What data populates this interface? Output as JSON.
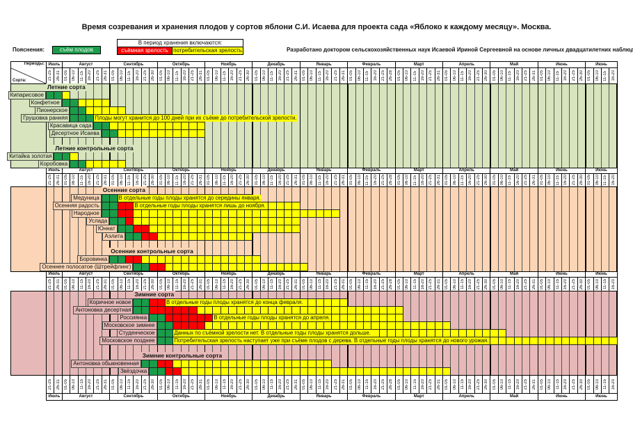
{
  "title": "Время созревания и хранения плодов у сортов яблони С.И. Исаева для проекта сада «Яблоко к каждому месяцу». Москва.",
  "legend": {
    "label": "Пояснения:",
    "harvest": "съём плодов",
    "storage_title": "В период хранения включаются:",
    "picking_maturity": "съёмная зрелость",
    "consumer_maturity": "потребительская зрелость"
  },
  "credit": "Разработано доктором сельскохозяйственных наук Исаевой Ириной Сергеевной на основе личных двадцатилетних наблюдений.",
  "header": {
    "periods_label": "Периоды:",
    "varieties_label": "Сорта:"
  },
  "colors": {
    "harvest": "#1a9c4a",
    "picking": "#ff0000",
    "consumer": "#ffff00",
    "summer_bg": "#d7e4bd",
    "autumn_bg": "#fbd5b5",
    "winter_bg": "#e6b9b8"
  },
  "chart_data": {
    "type": "gantt",
    "title": "Время созревания и хранения плодов у сортов яблони С.И. Исаева",
    "x_unit": "period index (5-day periods, 0 = Июль 21-25)",
    "periods": {
      "months": [
        {
          "name": "Июль",
          "ranges": [
            "21-25",
            "26-31"
          ]
        },
        {
          "name": "Август",
          "ranges": [
            "01-05",
            "06-10",
            "11-15",
            "16-20",
            "21-25",
            "26-31"
          ]
        },
        {
          "name": "Сентябрь",
          "ranges": [
            "01-05",
            "06-10",
            "11-15",
            "16-20",
            "21-25",
            "26-30"
          ]
        },
        {
          "name": "Октябрь",
          "ranges": [
            "01-05",
            "06-10",
            "11-15",
            "16-20",
            "21-25",
            "26-31"
          ]
        },
        {
          "name": "Ноябрь",
          "ranges": [
            "01-05",
            "06-10",
            "11-15",
            "16-20",
            "21-25",
            "26-30"
          ]
        },
        {
          "name": "Декабрь",
          "ranges": [
            "01-05",
            "06-10",
            "11-15",
            "16-20",
            "21-25",
            "26-31"
          ]
        },
        {
          "name": "Январь",
          "ranges": [
            "01-05",
            "06-10",
            "11-15",
            "16-20",
            "21-25",
            "26-31"
          ]
        },
        {
          "name": "Февраль",
          "ranges": [
            "01-05",
            "06-10",
            "11-15",
            "16-20",
            "21-25",
            "26-28"
          ]
        },
        {
          "name": "Март",
          "ranges": [
            "01-05",
            "06-10",
            "11-15",
            "16-20",
            "21-25",
            "26-31"
          ]
        },
        {
          "name": "Апрель",
          "ranges": [
            "01-05",
            "06-10",
            "11-15",
            "16-20",
            "21-25",
            "26-30"
          ]
        },
        {
          "name": "Май",
          "ranges": [
            "01-05",
            "06-10",
            "11-15",
            "16-20",
            "21-25",
            "26-31"
          ]
        },
        {
          "name": "Июнь",
          "ranges": [
            "01-05",
            "06-10",
            "11-15",
            "16-20",
            "21-25",
            "26-30"
          ]
        },
        {
          "name": "Июнь",
          "ranges": [
            "01-05",
            "06-10",
            "11-15",
            "16-20"
          ]
        }
      ]
    },
    "sections": [
      {
        "key": "summer",
        "groups": [
          {
            "title": "Летние сорта",
            "varieties": [
              {
                "name": "Кипарисовое",
                "harvest": [
                  0,
                  1
                ],
                "picking": null,
                "consumer": [
                  2,
                  2
                ]
              },
              {
                "name": "Конфетное",
                "harvest": [
                  2,
                  3
                ],
                "picking": null,
                "consumer": [
                  4,
                  7
                ]
              },
              {
                "name": "Пионерское",
                "harvest": [
                  3,
                  4
                ],
                "picking": null,
                "consumer": [
                  5,
                  9
                ]
              },
              {
                "name": "Грушовка ранняя",
                "harvest": [
                  3,
                  5
                ],
                "picking": null,
                "consumer": [
                  6,
                  16
                ],
                "note": "Плоды могут хранится до 100 дней при их съёме до потребительской зрелости."
              },
              {
                "name": "Красавица сада",
                "harvest": [
                  6,
                  7
                ],
                "picking": null,
                "consumer": [
                  8,
                  19
                ]
              },
              {
                "name": "Десертное Исаева",
                "harvest": [
                  7,
                  8
                ],
                "picking": null,
                "consumer": [
                  9,
                  19
                ]
              }
            ]
          },
          {
            "title": "Летние контрольные сорта",
            "varieties": [
              {
                "name": "Китайка золотая",
                "harvest": [
                  1,
                  2
                ],
                "picking": null,
                "consumer": [
                  3,
                  3
                ]
              },
              {
                "name": "Коробовка",
                "harvest": [
                  3,
                  4
                ],
                "picking": null,
                "consumer": [
                  5,
                  9
                ]
              }
            ]
          }
        ]
      },
      {
        "key": "autumn",
        "groups": [
          {
            "title": "Осенние сорта",
            "varieties": [
              {
                "name": "Медуница",
                "harvest": [
                  7,
                  8
                ],
                "picking": null,
                "consumer": [
                  9,
                  25
                ],
                "note": "В отдельные годы плоды хранятся до середины января."
              },
              {
                "name": "Осенняя радость",
                "harvest": [
                  7,
                  8
                ],
                "picking": [
                  9,
                  10
                ],
                "consumer": [
                  11,
                  31
                ],
                "note": "В отдельные годы плоды хранятся лишь до ноября."
              },
              {
                "name": "Народное",
                "harvest": [
                  7,
                  8
                ],
                "picking": [
                  9,
                  10
                ],
                "consumer": [
                  11,
                  36
                ]
              },
              {
                "name": "Услада",
                "harvest": [
                  8,
                  9
                ],
                "picking": [
                  10,
                  10
                ],
                "consumer": [
                  11,
                  31
                ]
              },
              {
                "name": "Юннат",
                "harvest": [
                  9,
                  10
                ],
                "picking": [
                  11,
                  12
                ],
                "consumer": [
                  13,
                  31
                ]
              },
              {
                "name": "Аэлита",
                "harvest": [
                  10,
                  11
                ],
                "picking": [
                  12,
                  13
                ],
                "consumer": [
                  14,
                  25
                ]
              }
            ]
          },
          {
            "title": "Осенние контрольные сорта",
            "varieties": [
              {
                "name": "Боровинка",
                "harvest": [
                  8,
                  9
                ],
                "picking": [
                  10,
                  11
                ],
                "consumer": [
                  12,
                  26
                ]
              },
              {
                "name": "Осеннее полосатое (Штрейфлинг)",
                "harvest": [
                  11,
                  12
                ],
                "picking": [
                  13,
                  14
                ],
                "consumer": [
                  15,
                  32
                ]
              }
            ]
          }
        ]
      },
      {
        "key": "winter",
        "groups": [
          {
            "title": "Зимние сорта",
            "varieties": [
              {
                "name": "Коричное новое",
                "harvest": [
                  11,
                  12
                ],
                "picking": [
                  13,
                  14
                ],
                "consumer": [
                  15,
                  37
                ],
                "note": "В отдельные годы плоды хранятся до конца февраля."
              },
              {
                "name": "Антоновка десертная",
                "harvest": [
                  11,
                  12
                ],
                "picking": [
                  13,
                  18
                ],
                "consumer": [
                  19,
                  44
                ]
              },
              {
                "name": "Россиянка",
                "harvest": [
                  13,
                  14
                ],
                "picking": [
                  15,
                  20
                ],
                "consumer": [
                  21,
                  44
                ],
                "note": "В отдельные годы плоды хранятся до апреля."
              },
              {
                "name": "Московское зимнее",
                "harvest": [
                  14,
                  15
                ],
                "picking": [
                  16,
                  19
                ],
                "consumer": [
                  20,
                  50
                ]
              },
              {
                "name": "Студенческое",
                "harvest": [
                  14,
                  15
                ],
                "picking": null,
                "consumer": [
                  16,
                  57
                ],
                "note": "Данных по съёмной зрелости нет. В отдельные годы плоды хранятся дольше."
              },
              {
                "name": "Московское позднее",
                "harvest": [
                  14,
                  15
                ],
                "picking": null,
                "consumer": [
                  16,
                  71
                ],
                "note": "Потребительская зрелость наступает уже при съёме плодов с дерева. В отдельные годы плоды хранятся до нового урожая."
              }
            ]
          },
          {
            "title": "Зимние контрольные сорта",
            "varieties": [
              {
                "name": "Антоновка обыкновенная",
                "harvest": [
                  12,
                  13
                ],
                "picking": [
                  14,
                  15
                ],
                "consumer": [
                  16,
                  35
                ]
              },
              {
                "name": "Звёздочка",
                "harvest": [
                  13,
                  14
                ],
                "picking": [
                  15,
                  16
                ],
                "consumer": [
                  17,
                  50
                ]
              }
            ]
          }
        ]
      }
    ]
  }
}
